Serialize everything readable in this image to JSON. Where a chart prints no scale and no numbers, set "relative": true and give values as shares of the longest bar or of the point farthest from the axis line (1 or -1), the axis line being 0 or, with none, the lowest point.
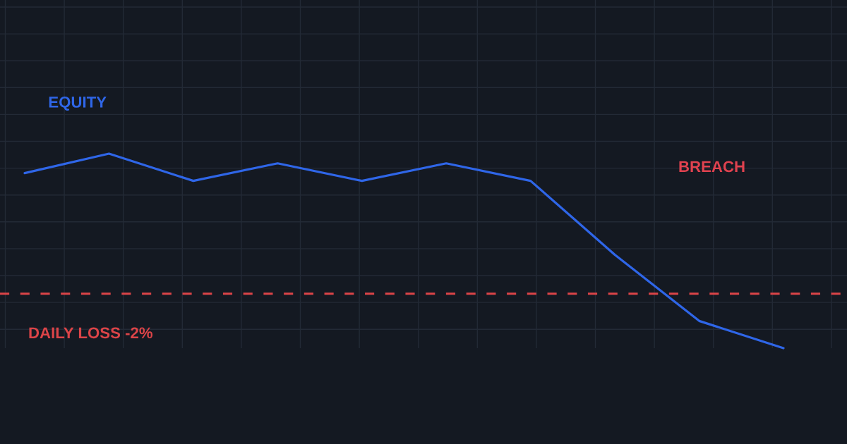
{
  "chart_data": {
    "type": "line",
    "relative": true,
    "categories": [
      null,
      null,
      null,
      null,
      null,
      null,
      null,
      null,
      null,
      null
    ],
    "series": [
      {
        "name": "EQUITY",
        "color": "#2f66e8",
        "values": [
          0.9,
          1,
          0.86,
          0.95,
          0.86,
          0.95,
          0.86,
          0.48,
          0.14,
          0
        ]
      }
    ],
    "ref_lines": [
      {
        "axis": "y",
        "value": 0.28,
        "label": "DAILY LOSS -2%",
        "color": "#dc4448",
        "line_style": "dashed"
      }
    ],
    "annotations": [
      "BREACH"
    ],
    "grid": true,
    "line_style": "solid"
  }
}
